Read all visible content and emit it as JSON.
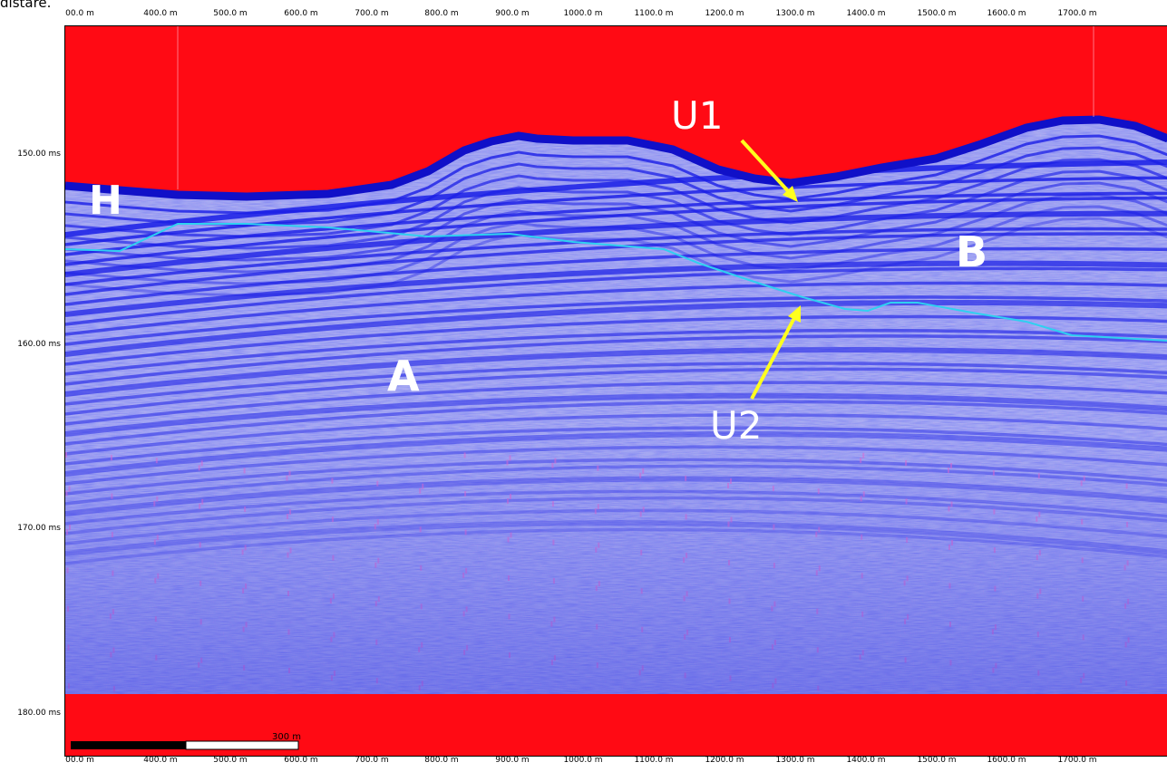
{
  "corner_text": "distare.",
  "x_tick_labels": [
    "00.0 m",
    "400.0 m",
    "500.0 m",
    "600.0 m",
    "700.0 m",
    "800.0 m",
    "900.0 m",
    "1000.0 m",
    "1100.0 m",
    "1200.0 m",
    "1300.0 m",
    "1400.0 m",
    "1500.0 m",
    "1600.0 m",
    "1700.0 m"
  ],
  "y_tick_labels": [
    "150.00 ms",
    "160.00 ms",
    "170.00 ms",
    "180.00 ms"
  ],
  "scale_bar_label": "300 m",
  "unit_labels": {
    "H": "H",
    "A": "A",
    "B": "B"
  },
  "arrow_labels": {
    "U1": "U1",
    "U2": "U2"
  },
  "colors": {
    "water_column": "#ff0a14",
    "sediment_dark": "#1a1ee6",
    "sediment_light": "#a8acf2",
    "noise_pink": "#e06ad0",
    "horizon_line": "#2fd0f0",
    "arrow": "#ffff1e",
    "label_white": "#ffffff"
  }
}
